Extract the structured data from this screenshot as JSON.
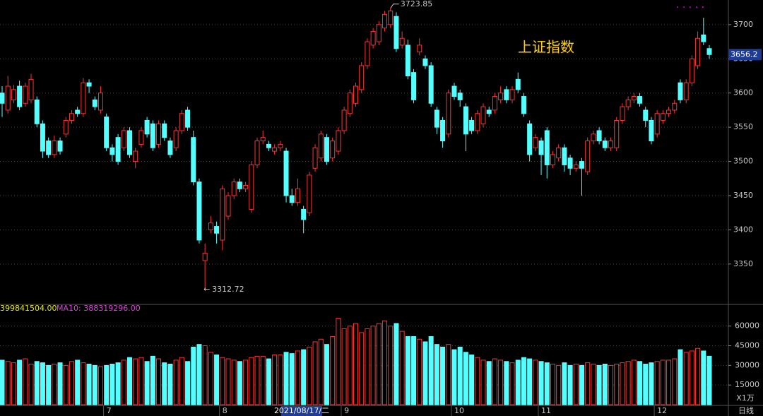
{
  "chart_data": {
    "type": "candlestick",
    "title": "上证指数",
    "period": "日线",
    "cursor_label": "2021/08/17/二",
    "up_color": "#ff3232",
    "down_color": "#54ffff",
    "categories": [
      null,
      null,
      null,
      null,
      null,
      null,
      null,
      null,
      null,
      null,
      null,
      null,
      null,
      null,
      null,
      null,
      null,
      null,
      "7",
      null,
      null,
      null,
      null,
      null,
      null,
      null,
      null,
      null,
      null,
      null,
      null,
      null,
      null,
      null,
      null,
      null,
      null,
      null,
      "8",
      null,
      null,
      null,
      null,
      null,
      null,
      null,
      null,
      null,
      null,
      null,
      null,
      null,
      null,
      null,
      null,
      null,
      null,
      null,
      null,
      "9",
      null,
      null,
      null,
      null,
      null,
      null,
      null,
      null,
      null,
      null,
      null,
      null,
      null,
      null,
      null,
      null,
      null,
      null,
      "10",
      null,
      null,
      null,
      null,
      null,
      null,
      null,
      null,
      null,
      null,
      null,
      null,
      null,
      null,
      "11",
      null,
      null,
      null,
      null,
      null,
      null,
      null,
      null,
      null,
      null,
      null,
      null,
      null,
      null,
      null,
      null,
      null,
      null,
      null,
      "12",
      null,
      null,
      null,
      null,
      null,
      null,
      null,
      null,
      null
    ],
    "open": [
      3600,
      3575,
      3590,
      3610,
      3585,
      3590,
      3590,
      3555,
      3530,
      3510,
      3530,
      3540,
      3560,
      3575,
      3570,
      3615,
      3590,
      3575,
      3565,
      3520,
      3535,
      3520,
      3545,
      3500,
      3525,
      3560,
      3555,
      3525,
      3555,
      3530,
      3520,
      3545,
      3575,
      3535,
      3470,
      3355,
      3400,
      3405,
      3385,
      3420,
      3450,
      3470,
      3460,
      3430,
      3495,
      3530,
      3525,
      3515,
      3520,
      3515,
      3450,
      3440,
      3430,
      3425,
      3490,
      3505,
      3535,
      3505,
      3515,
      3545,
      3570,
      3585,
      3605,
      3640,
      3670,
      3675,
      3695,
      3700,
      3712,
      3670,
      3670,
      3630,
      3660,
      3650,
      3640,
      3575,
      3560,
      3540,
      3610,
      3600,
      3580,
      3560,
      3545,
      3555,
      3575,
      3575,
      3590,
      3605,
      3590,
      3620,
      3595,
      3555,
      3520,
      3530,
      3545,
      3495,
      3505,
      3520,
      3505,
      3490,
      3500,
      3485,
      3530,
      3545,
      3530,
      3520,
      3520,
      3560,
      3580,
      3590,
      3595,
      3575,
      3560,
      3540,
      3560,
      3570,
      3575,
      3615,
      3590,
      3615,
      3640,
      3685,
      3665
    ],
    "high": [
      3610,
      3625,
      3612,
      3618,
      3615,
      3628,
      3595,
      3560,
      3535,
      3538,
      3535,
      3565,
      3575,
      3580,
      3622,
      3620,
      3595,
      3610,
      3570,
      3525,
      3540,
      3550,
      3550,
      3520,
      3550,
      3565,
      3560,
      3560,
      3560,
      3535,
      3550,
      3575,
      3580,
      3545,
      3475,
      3380,
      3420,
      3412,
      3465,
      3455,
      3475,
      3475,
      3470,
      3500,
      3535,
      3545,
      3530,
      3525,
      3530,
      3520,
      3460,
      3475,
      3435,
      3485,
      3525,
      3545,
      3540,
      3535,
      3550,
      3580,
      3605,
      3615,
      3645,
      3680,
      3695,
      3705,
      3720,
      3723.85,
      3718,
      3690,
      3678,
      3635,
      3680,
      3655,
      3645,
      3580,
      3565,
      3605,
      3615,
      3605,
      3585,
      3565,
      3575,
      3585,
      3580,
      3600,
      3610,
      3610,
      3610,
      3630,
      3600,
      3560,
      3540,
      3535,
      3550,
      3515,
      3525,
      3525,
      3510,
      3500,
      3505,
      3535,
      3545,
      3550,
      3535,
      3535,
      3565,
      3585,
      3595,
      3600,
      3600,
      3580,
      3565,
      3575,
      3575,
      3580,
      3590,
      3620,
      3620,
      3655,
      3690,
      3710,
      3670
    ],
    "low": [
      3565,
      3570,
      3585,
      3575,
      3580,
      3585,
      3550,
      3505,
      3505,
      3505,
      3510,
      3535,
      3555,
      3565,
      3565,
      3600,
      3575,
      3570,
      3515,
      3500,
      3495,
      3515,
      3505,
      3490,
      3520,
      3535,
      3515,
      3520,
      3530,
      3505,
      3515,
      3540,
      3545,
      3465,
      3380,
      3312.72,
      3395,
      3380,
      3370,
      3415,
      3445,
      3455,
      3455,
      3425,
      3490,
      3525,
      3515,
      3510,
      3515,
      3440,
      3435,
      3435,
      3395,
      3420,
      3485,
      3500,
      3495,
      3500,
      3510,
      3540,
      3565,
      3580,
      3600,
      3635,
      3665,
      3670,
      3690,
      3695,
      3660,
      3665,
      3620,
      3585,
      3655,
      3635,
      3580,
      3540,
      3520,
      3535,
      3590,
      3580,
      3515,
      3540,
      3540,
      3550,
      3565,
      3570,
      3585,
      3585,
      3585,
      3600,
      3565,
      3500,
      3515,
      3480,
      3475,
      3490,
      3500,
      3485,
      3480,
      3485,
      3450,
      3480,
      3525,
      3525,
      3515,
      3515,
      3515,
      3555,
      3575,
      3585,
      3580,
      3550,
      3525,
      3535,
      3555,
      3565,
      3570,
      3585,
      3585,
      3610,
      3635,
      3670,
      3650
    ],
    "close": [
      3585,
      3610,
      3605,
      3580,
      3610,
      3620,
      3555,
      3515,
      3510,
      3530,
      3515,
      3560,
      3570,
      3570,
      3615,
      3610,
      3580,
      3600,
      3520,
      3510,
      3500,
      3545,
      3510,
      3515,
      3545,
      3540,
      3520,
      3555,
      3535,
      3510,
      3545,
      3570,
      3550,
      3470,
      3385,
      3366,
      3410,
      3395,
      3460,
      3450,
      3470,
      3460,
      3465,
      3495,
      3530,
      3535,
      3520,
      3520,
      3525,
      3450,
      3440,
      3460,
      3415,
      3480,
      3520,
      3540,
      3500,
      3530,
      3545,
      3575,
      3600,
      3610,
      3640,
      3675,
      3690,
      3700,
      3715,
      3720,
      3665,
      3680,
      3625,
      3590,
      3670,
      3640,
      3585,
      3550,
      3530,
      3600,
      3595,
      3590,
      3540,
      3545,
      3570,
      3580,
      3570,
      3595,
      3600,
      3590,
      3605,
      3605,
      3570,
      3510,
      3535,
      3510,
      3495,
      3510,
      3520,
      3495,
      3490,
      3495,
      3490,
      3530,
      3540,
      3530,
      3520,
      3530,
      3560,
      3580,
      3590,
      3595,
      3585,
      3560,
      3530,
      3570,
      3570,
      3575,
      3585,
      3590,
      3615,
      3650,
      3680,
      3675,
      3656.2
    ],
    "ylim": [
      3292,
      3736
    ],
    "yticks": [
      3350,
      3400,
      3450,
      3500,
      3550,
      3600,
      3650,
      3700
    ],
    "grid": true,
    "volume": {
      "unit_label": "X1万",
      "ma5_label": "399841504.00",
      "ma5_color": "#e8e800",
      "ma10_label": "MA10: 388319296.00",
      "ma10_color": "#e040e0",
      "ylim": [
        0,
        76000
      ],
      "yticks": [
        15000,
        30000,
        45000,
        60000
      ],
      "values": [
        34000,
        33000,
        32000,
        34000,
        35000,
        31000,
        33000,
        32000,
        30000,
        31000,
        32000,
        30000,
        33000,
        34000,
        32000,
        31000,
        30000,
        29000,
        30000,
        31000,
        32000,
        34000,
        36000,
        35000,
        36000,
        33000,
        37000,
        35000,
        32000,
        31000,
        34000,
        36000,
        33000,
        44000,
        46000,
        45000,
        40000,
        38000,
        36000,
        35000,
        34000,
        33000,
        34000,
        36000,
        37000,
        37000,
        35000,
        38000,
        38000,
        40000,
        39000,
        41000,
        42000,
        44000,
        48000,
        50000,
        46000,
        52000,
        66000,
        58000,
        60000,
        62000,
        55000,
        58000,
        60000,
        62000,
        64000,
        60000,
        62000,
        56000,
        52000,
        52000,
        50000,
        48000,
        52000,
        46000,
        44000,
        46000,
        42000,
        44000,
        40000,
        38000,
        36000,
        34000,
        33000,
        35000,
        34000,
        33000,
        32000,
        34000,
        36000,
        35000,
        34000,
        33000,
        32000,
        31000,
        30000,
        32000,
        30000,
        31000,
        30000,
        32000,
        31000,
        30000,
        31000,
        30000,
        31000,
        32000,
        33000,
        34000,
        33000,
        31000,
        32000,
        33000,
        34000,
        34000,
        35000,
        42000,
        40000,
        41000,
        43000,
        41000,
        37000
      ]
    }
  }
}
